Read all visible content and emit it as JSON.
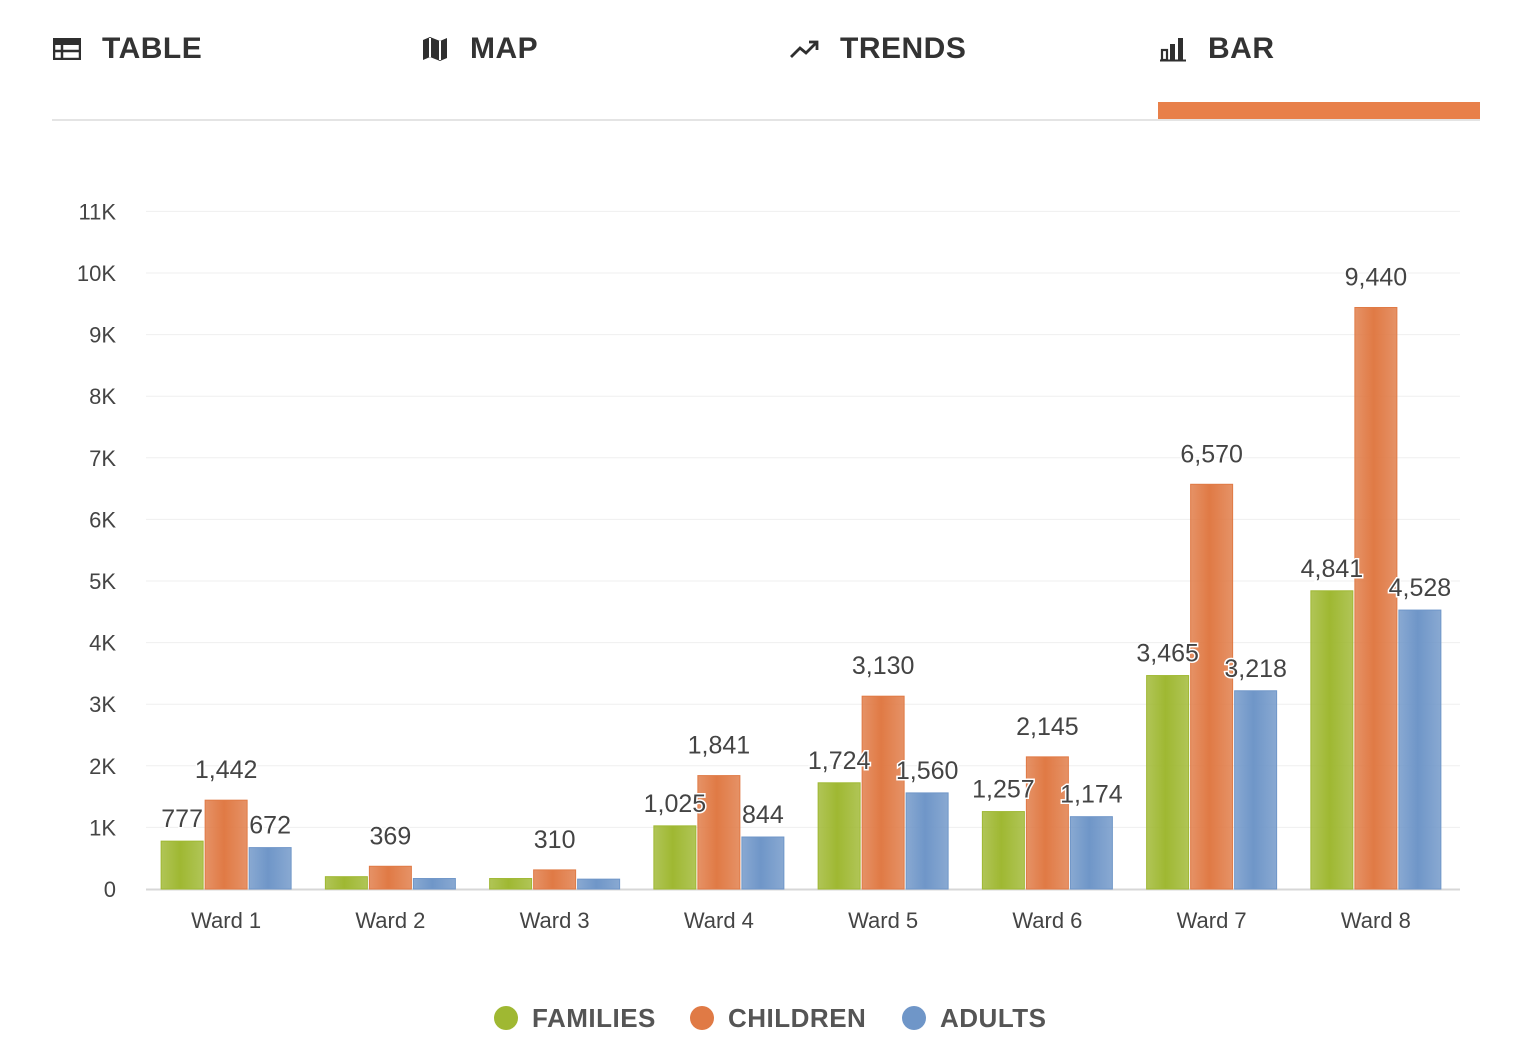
{
  "tabs": [
    {
      "label": "TABLE",
      "icon": "table-icon"
    },
    {
      "label": "MAP",
      "icon": "map-icon"
    },
    {
      "label": "TRENDS",
      "icon": "trending-up-icon"
    },
    {
      "label": "BAR",
      "icon": "bar-chart-icon"
    }
  ],
  "active_tab": "BAR",
  "colors": {
    "accent": "#e8804a",
    "families": "#9fb832",
    "children": "#e07a45",
    "adults": "#6f96c8"
  },
  "chart_data": {
    "type": "bar",
    "categories": [
      "Ward 1",
      "Ward 2",
      "Ward 3",
      "Ward 4",
      "Ward 5",
      "Ward 6",
      "Ward 7",
      "Ward 8"
    ],
    "series": [
      {
        "name": "FAMILIES",
        "values": [
          777,
          200,
          170,
          1025,
          1724,
          1257,
          3465,
          4841
        ],
        "labels": [
          "777",
          "",
          "",
          "1,025",
          "1,724",
          "1,257",
          "3,465",
          "4,841"
        ]
      },
      {
        "name": "CHILDREN",
        "values": [
          1442,
          369,
          310,
          1841,
          3130,
          2145,
          6570,
          9440
        ],
        "labels": [
          "1,442",
          "369",
          "310",
          "1,841",
          "3,130",
          "2,145",
          "6,570",
          "9,440"
        ]
      },
      {
        "name": "ADULTS",
        "values": [
          672,
          170,
          160,
          844,
          1560,
          1174,
          3218,
          4528
        ],
        "labels": [
          "672",
          "",
          "",
          "844",
          "1,560",
          "1,174",
          "3,218",
          "4,528"
        ]
      }
    ],
    "y_ticks": [
      "0",
      "1K",
      "2K",
      "3K",
      "4K",
      "5K",
      "6K",
      "7K",
      "8K",
      "9K",
      "10K",
      "11K"
    ],
    "ylim": [
      0,
      11000
    ],
    "grid": true,
    "legend_position": "bottom-center",
    "title": "",
    "xlabel": "",
    "ylabel": ""
  }
}
